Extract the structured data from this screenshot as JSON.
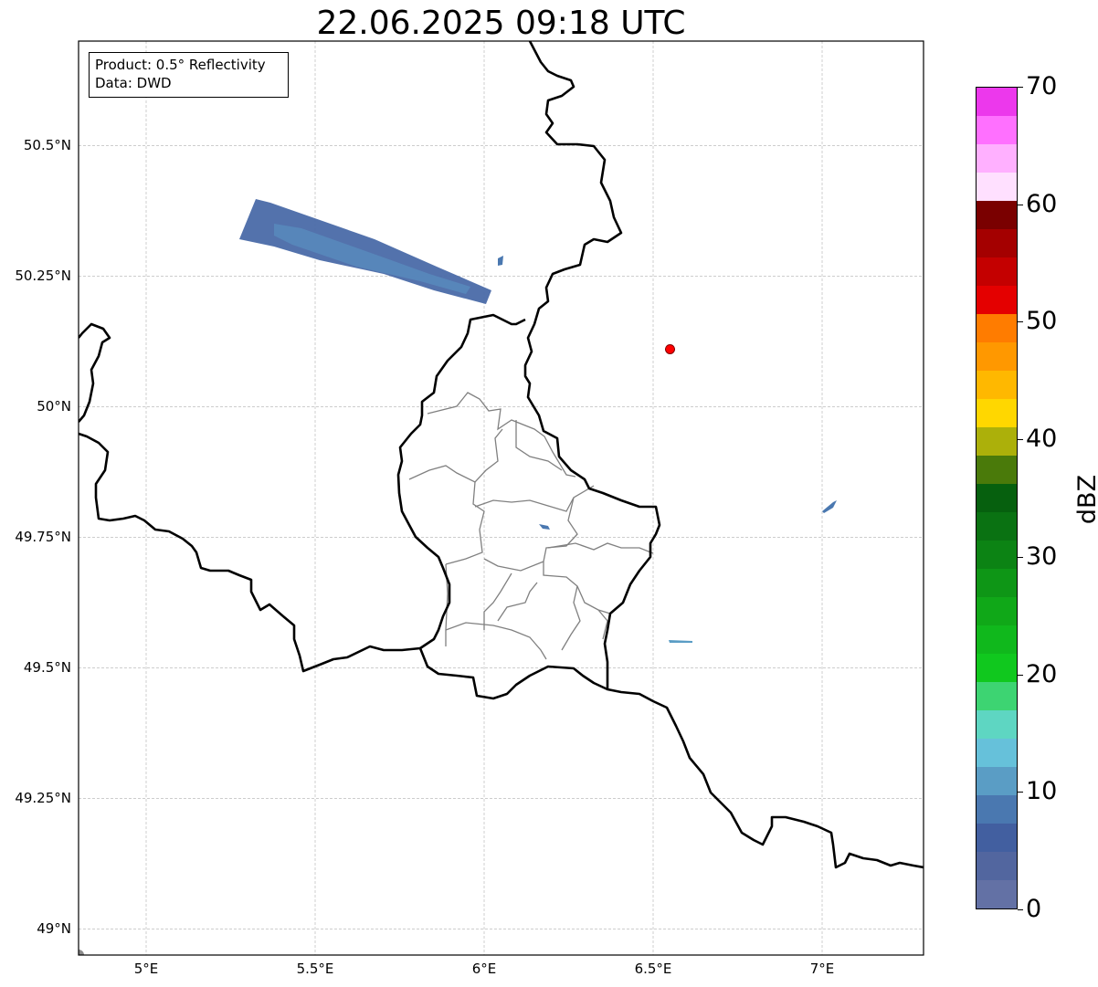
{
  "title": "22.06.2025 09:18 UTC",
  "info_box": {
    "product": "Product: 0.5° Reflectivity",
    "data": "Data: DWD"
  },
  "map": {
    "lon_range": [
      4.8,
      7.3
    ],
    "lat_range": [
      48.95,
      50.7
    ],
    "lat_ticks": [
      {
        "value": 49.0,
        "label": "49°N"
      },
      {
        "value": 49.25,
        "label": "49.25°N"
      },
      {
        "value": 49.5,
        "label": "49.5°N"
      },
      {
        "value": 49.75,
        "label": "49.75°N"
      },
      {
        "value": 50.0,
        "label": "50°N"
      },
      {
        "value": 50.25,
        "label": "50.25°N"
      },
      {
        "value": 50.5,
        "label": "50.5°N"
      }
    ],
    "lon_ticks": [
      {
        "value": 5.0,
        "label": "5°E"
      },
      {
        "value": 5.5,
        "label": "5.5°E"
      },
      {
        "value": 6.0,
        "label": "6°E"
      },
      {
        "value": 6.5,
        "label": "6.5°E"
      },
      {
        "value": 7.0,
        "label": "7°E"
      }
    ],
    "radar_site": {
      "lon": 6.55,
      "lat": 50.11,
      "color": "#ff0000"
    },
    "grid": true
  },
  "colorbar": {
    "label": "dBZ",
    "min": 0,
    "max": 70,
    "ticks": [
      "0",
      "10",
      "20",
      "30",
      "40",
      "50",
      "60",
      "70"
    ],
    "colors": [
      "#6371a5",
      "#52669f",
      "#425fa0",
      "#4a78b0",
      "#5a9dc5",
      "#66c1da",
      "#5ed6c2",
      "#3dd472",
      "#10c81e",
      "#10b81c",
      "#10a818",
      "#0e9616",
      "#0c8314",
      "#0a7212",
      "#06600e",
      "#4a7a0a",
      "#acb00a",
      "#ffd700",
      "#ffb800",
      "#ff9800",
      "#ff7c00",
      "#e40000",
      "#c40000",
      "#a40000",
      "#7a0000",
      "#ffe0ff",
      "#ffb0ff",
      "#ff70ff",
      "#ec38ec"
    ]
  }
}
